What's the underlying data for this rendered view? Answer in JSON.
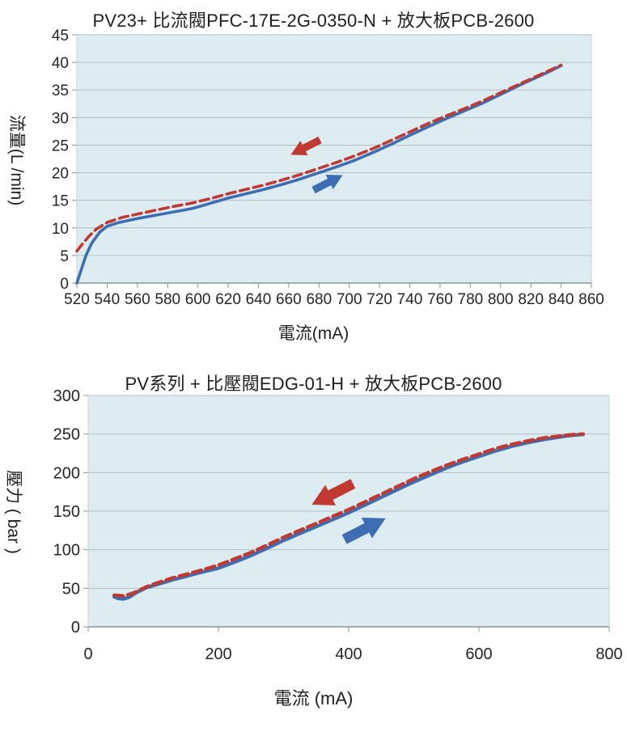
{
  "page": {
    "background": "#ffffff"
  },
  "chart_data": [
    {
      "type": "line",
      "title": "PV23+ 比流閥PFC-17E-2G-0350-N + 放大板PCB-2600",
      "xlabel": "電流(mA)",
      "ylabel": "流量(L /min)",
      "xlim": [
        520,
        860
      ],
      "ylim": [
        0,
        45
      ],
      "xticks": [
        520,
        540,
        560,
        580,
        600,
        620,
        640,
        660,
        680,
        700,
        720,
        740,
        760,
        780,
        800,
        820,
        840,
        860
      ],
      "yticks": [
        0,
        5,
        10,
        15,
        20,
        25,
        30,
        35,
        40,
        45
      ],
      "grid": "horizontal-only",
      "legend_position": "none",
      "colors": {
        "plot_bg": "#ddecf1",
        "grid": "#b3bfc2",
        "axis": "#8a9499",
        "border": "#c7d2d5"
      },
      "series": [
        {
          "name": "blue-solid-curve",
          "color": "#3d6db3",
          "style": "solid",
          "points": [
            [
              520,
              0
            ],
            [
              523,
              2.5
            ],
            [
              526,
              5
            ],
            [
              530,
              7.3
            ],
            [
              535,
              9.2
            ],
            [
              540,
              10.3
            ],
            [
              548,
              11
            ],
            [
              560,
              11.7
            ],
            [
              572,
              12.3
            ],
            [
              584,
              12.9
            ],
            [
              596,
              13.5
            ],
            [
              600,
              13.8
            ],
            [
              610,
              14.6
            ],
            [
              620,
              15.4
            ],
            [
              632,
              16.2
            ],
            [
              644,
              17
            ],
            [
              656,
              17.9
            ],
            [
              668,
              18.9
            ],
            [
              680,
              20
            ],
            [
              692,
              21.1
            ],
            [
              704,
              22.3
            ],
            [
              716,
              23.7
            ],
            [
              728,
              25.2
            ],
            [
              740,
              26.8
            ],
            [
              752,
              28.3
            ],
            [
              764,
              29.8
            ],
            [
              776,
              31.2
            ],
            [
              788,
              32.6
            ],
            [
              800,
              34.2
            ],
            [
              812,
              35.8
            ],
            [
              824,
              37.3
            ],
            [
              832,
              38.3
            ],
            [
              840,
              39.4
            ]
          ]
        },
        {
          "name": "red-dashed-curve",
          "color": "#c13a31",
          "style": "dashed",
          "points": [
            [
              520,
              5.8
            ],
            [
              524,
              7.2
            ],
            [
              528,
              8.5
            ],
            [
              533,
              9.8
            ],
            [
              540,
              11
            ],
            [
              550,
              11.9
            ],
            [
              560,
              12.5
            ],
            [
              572,
              13.2
            ],
            [
              584,
              13.9
            ],
            [
              596,
              14.5
            ],
            [
              608,
              15.3
            ],
            [
              620,
              16.2
            ],
            [
              632,
              17
            ],
            [
              644,
              17.8
            ],
            [
              656,
              18.7
            ],
            [
              668,
              19.7
            ],
            [
              680,
              20.8
            ],
            [
              692,
              21.9
            ],
            [
              704,
              23.1
            ],
            [
              716,
              24.4
            ],
            [
              728,
              25.9
            ],
            [
              740,
              27.4
            ],
            [
              752,
              28.9
            ],
            [
              764,
              30.3
            ],
            [
              776,
              31.6
            ],
            [
              788,
              33
            ],
            [
              800,
              34.5
            ],
            [
              812,
              36
            ],
            [
              824,
              37.5
            ],
            [
              832,
              38.5
            ],
            [
              840,
              39.5
            ]
          ]
        }
      ],
      "annotations": [
        {
          "shape": "block-arrow",
          "direction": "left-down",
          "color": "#c13a31",
          "x": 671,
          "y": 24.6
        },
        {
          "shape": "block-arrow",
          "direction": "right-up",
          "color": "#3d6db3",
          "x": 686,
          "y": 18.2
        }
      ]
    },
    {
      "type": "line",
      "title": "PV系列 + 比壓閥EDG-01-H + 放大板PCB-2600",
      "xlabel": "電流 (mA)",
      "ylabel": "壓力 ( bar )",
      "xlim": [
        0,
        800
      ],
      "ylim": [
        0,
        300
      ],
      "xticks": [
        0,
        200,
        400,
        600,
        800
      ],
      "yticks": [
        0,
        50,
        100,
        150,
        200,
        250,
        300
      ],
      "grid": "horizontal-only",
      "legend_position": "none",
      "colors": {
        "plot_bg": "#ddecf1",
        "grid": "#b3bfc2",
        "axis": "#8a9499",
        "border": "#c7d2d5"
      },
      "series": [
        {
          "name": "blue-solid-curve",
          "color": "#3d6db3",
          "style": "solid",
          "points": [
            [
              40,
              39
            ],
            [
              46,
              36.8
            ],
            [
              54,
              36.2
            ],
            [
              62,
              38
            ],
            [
              75,
              45
            ],
            [
              90,
              51
            ],
            [
              110,
              56
            ],
            [
              130,
              61
            ],
            [
              150,
              65.5
            ],
            [
              170,
              70
            ],
            [
              180,
              72
            ],
            [
              200,
              76
            ],
            [
              225,
              84
            ],
            [
              250,
              92.5
            ],
            [
              275,
              102
            ],
            [
              300,
              112
            ],
            [
              325,
              121
            ],
            [
              350,
              130
            ],
            [
              375,
              139
            ],
            [
              400,
              148
            ],
            [
              425,
              158
            ],
            [
              450,
              168
            ],
            [
              475,
              178
            ],
            [
              500,
              188
            ],
            [
              525,
              197
            ],
            [
              550,
              206
            ],
            [
              575,
              214
            ],
            [
              600,
              221
            ],
            [
              625,
              228
            ],
            [
              650,
              234
            ],
            [
              675,
              239
            ],
            [
              700,
              243
            ],
            [
              715,
              245
            ],
            [
              730,
              247
            ],
            [
              745,
              248.5
            ],
            [
              760,
              249.5
            ]
          ]
        },
        {
          "name": "red-dashed-curve",
          "color": "#c13a31",
          "style": "dashed",
          "points": [
            [
              40,
              41
            ],
            [
              55,
              40
            ],
            [
              70,
              44
            ],
            [
              90,
              52
            ],
            [
              110,
              58
            ],
            [
              130,
              63.5
            ],
            [
              150,
              68
            ],
            [
              170,
              72.5
            ],
            [
              185,
              76
            ],
            [
              200,
              80
            ],
            [
              225,
              88
            ],
            [
              250,
              96.5
            ],
            [
              275,
              106
            ],
            [
              300,
              116
            ],
            [
              325,
              125
            ],
            [
              350,
              134
            ],
            [
              375,
              143
            ],
            [
              400,
              152
            ],
            [
              425,
              162
            ],
            [
              450,
              172
            ],
            [
              475,
              182
            ],
            [
              500,
              192
            ],
            [
              525,
              201
            ],
            [
              550,
              209.5
            ],
            [
              575,
              217
            ],
            [
              600,
              224
            ],
            [
              625,
              231
            ],
            [
              650,
              236.5
            ],
            [
              675,
              241
            ],
            [
              700,
              245
            ],
            [
              715,
              246.5
            ],
            [
              730,
              248
            ],
            [
              745,
              249.3
            ],
            [
              760,
              250
            ]
          ]
        }
      ],
      "annotations": [
        {
          "shape": "block-arrow",
          "direction": "left-down",
          "color": "#c13a31",
          "x": 375,
          "y": 172
        },
        {
          "shape": "block-arrow",
          "direction": "right-up",
          "color": "#3d6db3",
          "x": 425,
          "y": 127
        }
      ]
    }
  ]
}
